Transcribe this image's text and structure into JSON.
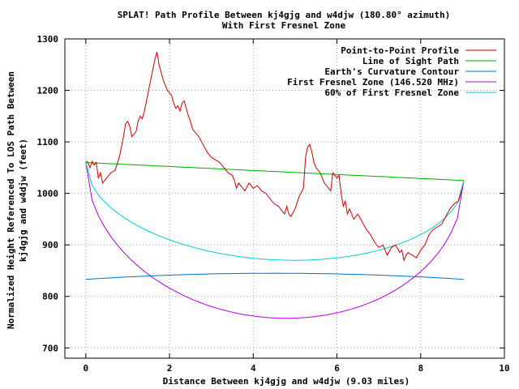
{
  "chart_data": {
    "type": "line",
    "title": "SPLAT! Path Profile Between kj4gjg and w4djw (180.80° azimuth)",
    "subtitle": "With First Fresnel Zone",
    "xlabel": "Distance Between kj4gjg and w4djw (9.03 miles)",
    "ylabel_lines": [
      "Normalized Height Referenced To LOS Path Between",
      "kj4gjg and w4djw (feet)"
    ],
    "xlim": [
      -0.5,
      10
    ],
    "ylim": [
      680,
      1300
    ],
    "x_ticks": [
      0,
      2,
      4,
      6,
      8,
      10
    ],
    "x_tick_labels": [
      "0",
      "2",
      "4",
      "6",
      "8",
      "10"
    ],
    "y_ticks": [
      700,
      800,
      900,
      1000,
      1100,
      1200,
      1300
    ],
    "y_tick_labels": [
      "700",
      "800",
      "900",
      "1000",
      "1100",
      "1200",
      "1300"
    ],
    "grid": true,
    "legend_position": "top-right",
    "series": [
      {
        "name": "Point-to-Point Profile",
        "color": "#cc0000",
        "x": [
          0,
          0.05,
          0.1,
          0.15,
          0.2,
          0.25,
          0.3,
          0.35,
          0.4,
          0.5,
          0.6,
          0.7,
          0.8,
          0.9,
          0.95,
          1.0,
          1.05,
          1.1,
          1.15,
          1.2,
          1.25,
          1.3,
          1.35,
          1.4,
          1.45,
          1.5,
          1.55,
          1.6,
          1.65,
          1.7,
          1.75,
          1.8,
          1.85,
          1.9,
          1.95,
          2.0,
          2.05,
          2.1,
          2.15,
          2.2,
          2.25,
          2.3,
          2.35,
          2.4,
          2.45,
          2.5,
          2.55,
          2.6,
          2.7,
          2.8,
          2.9,
          3.0,
          3.1,
          3.2,
          3.3,
          3.4,
          3.5,
          3.55,
          3.6,
          3.65,
          3.7,
          3.8,
          3.9,
          4.0,
          4.1,
          4.2,
          4.3,
          4.4,
          4.5,
          4.6,
          4.7,
          4.75,
          4.8,
          4.85,
          4.9,
          5.0,
          5.1,
          5.2,
          5.25,
          5.3,
          5.35,
          5.4,
          5.45,
          5.5,
          5.6,
          5.7,
          5.8,
          5.85,
          5.9,
          6.0,
          6.05,
          6.1,
          6.15,
          6.2,
          6.25,
          6.3,
          6.4,
          6.5,
          6.6,
          6.7,
          6.8,
          6.9,
          7.0,
          7.1,
          7.2,
          7.3,
          7.4,
          7.5,
          7.55,
          7.6,
          7.65,
          7.7,
          7.8,
          7.9,
          8.0,
          8.1,
          8.2,
          8.3,
          8.4,
          8.5,
          8.6,
          8.7,
          8.8,
          8.9,
          9.0
        ],
        "y": [
          1063,
          1060,
          1050,
          1062,
          1055,
          1060,
          1030,
          1040,
          1020,
          1030,
          1040,
          1045,
          1070,
          1110,
          1135,
          1140,
          1130,
          1110,
          1115,
          1120,
          1140,
          1150,
          1145,
          1160,
          1180,
          1200,
          1220,
          1240,
          1260,
          1275,
          1250,
          1235,
          1220,
          1210,
          1200,
          1195,
          1190,
          1175,
          1165,
          1170,
          1160,
          1175,
          1180,
          1165,
          1150,
          1140,
          1125,
          1120,
          1110,
          1095,
          1080,
          1070,
          1065,
          1060,
          1050,
          1040,
          1035,
          1025,
          1010,
          1020,
          1015,
          1005,
          1020,
          1010,
          1015,
          1005,
          1000,
          990,
          980,
          975,
          965,
          960,
          975,
          960,
          955,
          970,
          995,
          1010,
          1070,
          1090,
          1095,
          1080,
          1060,
          1050,
          1040,
          1020,
          1010,
          1005,
          1040,
          1030,
          1035,
          1000,
          975,
          985,
          960,
          970,
          950,
          960,
          945,
          930,
          920,
          905,
          895,
          900,
          880,
          895,
          900,
          885,
          890,
          870,
          880,
          885,
          880,
          875,
          890,
          900,
          920,
          930,
          935,
          940,
          955,
          970,
          980,
          985,
          1010
        ]
      },
      {
        "name": "Line of Sight Path",
        "color": "#00aa00",
        "kind": "los",
        "x_start": 0,
        "x_end": 9.03,
        "y_start": 1060,
        "y_end": 1025
      },
      {
        "name": "Earth's Curvature Contour",
        "color": "#0072c6",
        "kind": "curvature",
        "x_start": 0,
        "x_end": 9.03,
        "y_ends": 833,
        "y_mid": 845
      },
      {
        "name": "First Fresnel Zone (146.520 MHz)",
        "color": "#b000dd",
        "kind": "fresnel",
        "x_start": 0,
        "x_end": 9.03,
        "y_min": 758
      },
      {
        "name": "60% of First Fresnel Zone",
        "color": "#00cccc",
        "kind": "fresnel60",
        "x_start": 0,
        "x_end": 9.03,
        "y_min": 871
      }
    ]
  }
}
